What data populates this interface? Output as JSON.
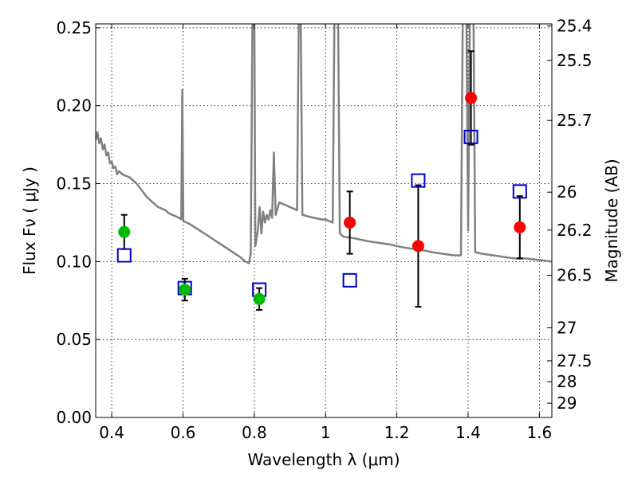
{
  "chart_data": {
    "type": "scatter",
    "xlabel": "Wavelength  λ (μm)",
    "ylabel_left": "Flux  Fν  ( μJy )",
    "ylabel_right": "Magnitude (AB)",
    "xlim": [
      0.355,
      1.635
    ],
    "ylim": [
      0,
      0.2525
    ],
    "x_ticks": [
      0.4,
      0.6,
      0.8,
      1.0,
      1.2,
      1.4,
      1.6
    ],
    "x_tick_labels": [
      "0.4",
      "0.6",
      "0.8",
      "1",
      "1.2",
      "1.4",
      "1.6"
    ],
    "y_ticks": [
      0.0,
      0.05,
      0.1,
      0.15,
      0.2,
      0.25
    ],
    "y_tick_labels": [
      "0.00",
      "0.05",
      "0.10",
      "0.15",
      "0.20",
      "0.25"
    ],
    "mag_ticks": [
      25.4,
      25.5,
      25.7,
      26,
      26.2,
      26.5,
      27,
      27.5,
      28,
      29
    ],
    "mag_tick_labels": [
      "25.4",
      "25.5",
      "25.7",
      "26",
      "26.2",
      "26.5",
      "27",
      "27.5",
      "28",
      "29"
    ],
    "grid": true,
    "series": [
      {
        "name": "model spectrum",
        "kind": "line",
        "color": "#808080",
        "points": [
          [
            0.355,
            0.178
          ],
          [
            0.36,
            0.183
          ],
          [
            0.365,
            0.176
          ],
          [
            0.37,
            0.179
          ],
          [
            0.375,
            0.172
          ],
          [
            0.38,
            0.175
          ],
          [
            0.385,
            0.168
          ],
          [
            0.39,
            0.17
          ],
          [
            0.395,
            0.163
          ],
          [
            0.4,
            0.164
          ],
          [
            0.405,
            0.16
          ],
          [
            0.41,
            0.161
          ],
          [
            0.415,
            0.156
          ],
          [
            0.42,
            0.158
          ],
          [
            0.425,
            0.157
          ],
          [
            0.43,
            0.156
          ],
          [
            0.44,
            0.155
          ],
          [
            0.45,
            0.154
          ],
          [
            0.46,
            0.152
          ],
          [
            0.47,
            0.15
          ],
          [
            0.48,
            0.147
          ],
          [
            0.49,
            0.144
          ],
          [
            0.5,
            0.141
          ],
          [
            0.51,
            0.139
          ],
          [
            0.52,
            0.137
          ],
          [
            0.53,
            0.135
          ],
          [
            0.54,
            0.134
          ],
          [
            0.55,
            0.133
          ],
          [
            0.56,
            0.131
          ],
          [
            0.57,
            0.13
          ],
          [
            0.58,
            0.129
          ],
          [
            0.59,
            0.128
          ],
          [
            0.595,
            0.127
          ],
          [
            0.598,
            0.21
          ],
          [
            0.601,
            0.126
          ],
          [
            0.61,
            0.125
          ],
          [
            0.62,
            0.124
          ],
          [
            0.64,
            0.121
          ],
          [
            0.66,
            0.118
          ],
          [
            0.68,
            0.115
          ],
          [
            0.7,
            0.112
          ],
          [
            0.72,
            0.109
          ],
          [
            0.74,
            0.106
          ],
          [
            0.76,
            0.103
          ],
          [
            0.775,
            0.1
          ],
          [
            0.785,
            0.099
          ],
          [
            0.79,
            0.105
          ],
          [
            0.795,
            0.26
          ],
          [
            0.8,
            0.26
          ],
          [
            0.803,
            0.11
          ],
          [
            0.81,
            0.12
          ],
          [
            0.815,
            0.135
          ],
          [
            0.82,
            0.118
          ],
          [
            0.825,
            0.132
          ],
          [
            0.83,
            0.125
          ],
          [
            0.835,
            0.13
          ],
          [
            0.84,
            0.127
          ],
          [
            0.845,
            0.133
          ],
          [
            0.85,
            0.128
          ],
          [
            0.855,
            0.17
          ],
          [
            0.86,
            0.13
          ],
          [
            0.87,
            0.138
          ],
          [
            0.88,
            0.137
          ],
          [
            0.89,
            0.136
          ],
          [
            0.9,
            0.135
          ],
          [
            0.91,
            0.134
          ],
          [
            0.92,
            0.133
          ],
          [
            0.925,
            0.26
          ],
          [
            0.93,
            0.26
          ],
          [
            0.935,
            0.13
          ],
          [
            0.95,
            0.129
          ],
          [
            0.97,
            0.128
          ],
          [
            0.99,
            0.127
          ],
          [
            1.0,
            0.127
          ],
          [
            1.01,
            0.126
          ],
          [
            1.02,
            0.125
          ],
          [
            1.025,
            0.26
          ],
          [
            1.035,
            0.26
          ],
          [
            1.04,
            0.118
          ],
          [
            1.05,
            0.116
          ],
          [
            1.08,
            0.115
          ],
          [
            1.1,
            0.114
          ],
          [
            1.12,
            0.113
          ],
          [
            1.15,
            0.112
          ],
          [
            1.18,
            0.111
          ],
          [
            1.2,
            0.11
          ],
          [
            1.22,
            0.109
          ],
          [
            1.25,
            0.108
          ],
          [
            1.28,
            0.107
          ],
          [
            1.3,
            0.106
          ],
          [
            1.33,
            0.105
          ],
          [
            1.36,
            0.104
          ],
          [
            1.38,
            0.104
          ],
          [
            1.385,
            0.26
          ],
          [
            1.395,
            0.26
          ],
          [
            1.4,
            0.12
          ],
          [
            1.405,
            0.26
          ],
          [
            1.415,
            0.26
          ],
          [
            1.42,
            0.106
          ],
          [
            1.44,
            0.105
          ],
          [
            1.47,
            0.104
          ],
          [
            1.5,
            0.103
          ],
          [
            1.53,
            0.102
          ],
          [
            1.56,
            0.102
          ],
          [
            1.6,
            0.101
          ],
          [
            1.635,
            0.1
          ]
        ]
      },
      {
        "name": "green detections",
        "kind": "points",
        "color": "#00bb00",
        "points": [
          {
            "x": 0.435,
            "y": 0.119,
            "err": 0.011
          },
          {
            "x": 0.605,
            "y": 0.082,
            "err": 0.007
          },
          {
            "x": 0.814,
            "y": 0.076,
            "err": 0.007
          }
        ]
      },
      {
        "name": "red detections",
        "kind": "points",
        "color": "#ff0000",
        "points": [
          {
            "x": 1.068,
            "y": 0.125,
            "err": 0.02
          },
          {
            "x": 1.26,
            "y": 0.11,
            "err": 0.039
          },
          {
            "x": 1.408,
            "y": 0.205,
            "err": 0.03
          },
          {
            "x": 1.545,
            "y": 0.122,
            "err": 0.02
          }
        ]
      },
      {
        "name": "model photometry",
        "kind": "squares",
        "color": "#0000cc",
        "points": [
          {
            "x": 0.435,
            "y": 0.104
          },
          {
            "x": 0.605,
            "y": 0.083
          },
          {
            "x": 0.814,
            "y": 0.082
          },
          {
            "x": 1.068,
            "y": 0.088
          },
          {
            "x": 1.26,
            "y": 0.152
          },
          {
            "x": 1.408,
            "y": 0.18
          },
          {
            "x": 1.545,
            "y": 0.145
          }
        ]
      }
    ]
  }
}
